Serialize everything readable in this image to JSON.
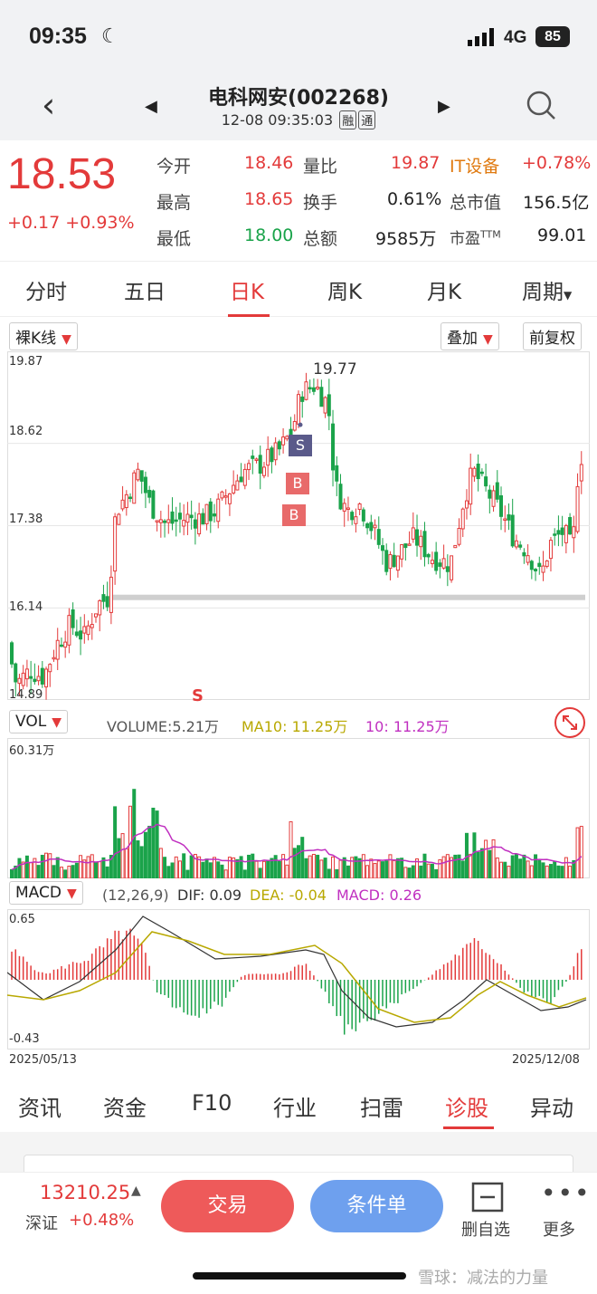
{
  "status": {
    "time": "09:35",
    "network": "4G",
    "battery": "85"
  },
  "header": {
    "title": "电科网安(002268)",
    "datetime": "12-08 09:35:03",
    "tag1": "融",
    "tag2": "通"
  },
  "quote": {
    "price": "18.53",
    "change": "+0.17",
    "change_pct": "+0.93%",
    "open_label": "今开",
    "open": "18.46",
    "high_label": "最高",
    "high": "18.65",
    "low_label": "最低",
    "low": "18.00",
    "vr_label": "量比",
    "vr": "19.87",
    "turnover_label": "换手",
    "turnover": "0.61%",
    "amount_label": "总额",
    "amount": "9585万",
    "sector": "IT设备",
    "sector_chg": "+0.78%",
    "mcap_label": "总市值",
    "mcap": "156.5亿",
    "pe_label": "市盈",
    "pe_suffix": "TTM",
    "pe": "99.01"
  },
  "period_tabs": [
    "分时",
    "五日",
    "日K",
    "周K",
    "月K",
    "周期"
  ],
  "controls": {
    "kline_type": "裸K线",
    "overlay": "叠加",
    "adjust": "前复权"
  },
  "kline": {
    "y_labels": [
      "19.87",
      "18.62",
      "17.38",
      "16.14",
      "14.89"
    ],
    "peak_label": "19.77",
    "marker_s": "S",
    "marker_b": "B",
    "colors": {
      "up": "#e33a3a",
      "down": "#1aa34a"
    }
  },
  "volume": {
    "selector": "VOL",
    "label": "VOLUME:5.21万",
    "ma10": "MA10: 11.25万",
    "ma10b": "10: 11.25万",
    "max_label": "60.31万"
  },
  "macd": {
    "selector": "MACD",
    "params": "(12,26,9)",
    "dif": "DIF: 0.09",
    "dea": "DEA: -0.04",
    "macd": "MACD: 0.26",
    "top": "0.65",
    "bottom": "-0.43",
    "date_start": "2025/05/13",
    "date_end": "2025/12/08"
  },
  "bottom_tabs": [
    "资讯",
    "资金",
    "F10",
    "行业",
    "扫雷",
    "诊股",
    "异动"
  ],
  "footer": {
    "index_value": "13210.25",
    "index_name": "深证",
    "index_chg": "+0.48%",
    "trade": "交易",
    "cond": "条件单",
    "remove_fav": "删自选",
    "more": "更多"
  },
  "watermark": "雪球：减法的力量"
}
